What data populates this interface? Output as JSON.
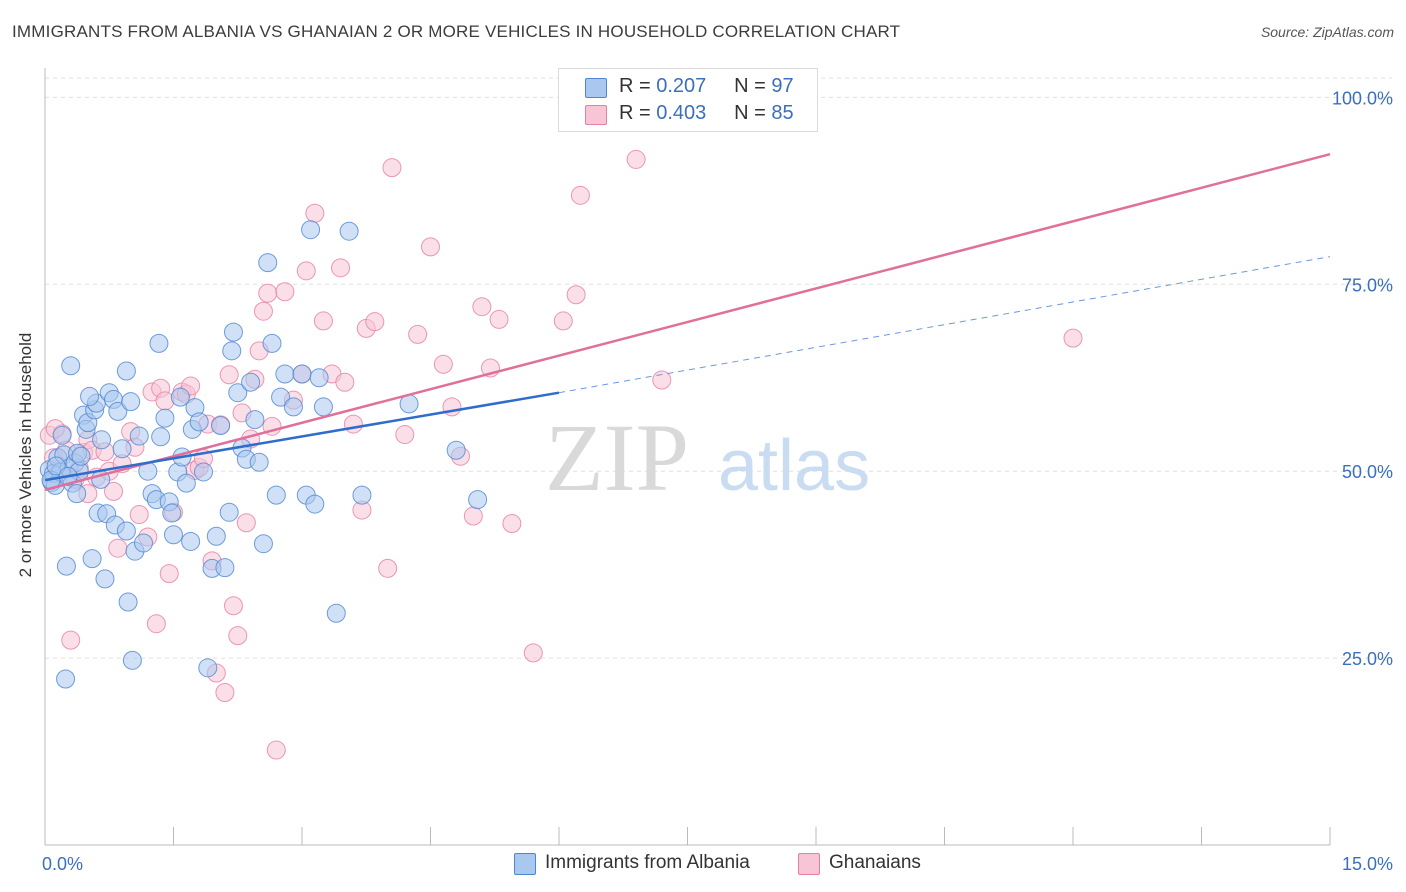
{
  "title": "IMMIGRANTS FROM ALBANIA VS GHANAIAN 2 OR MORE VEHICLES IN HOUSEHOLD CORRELATION CHART",
  "source": "Source: ZipAtlas.com",
  "watermark": {
    "zip": "ZIP",
    "atlas": "atlas"
  },
  "legend": {
    "rows": [
      {
        "r_label": "R =",
        "r_value": "0.207",
        "n_label": "N =",
        "n_value": "97"
      },
      {
        "r_label": "R =",
        "r_value": "0.403",
        "n_label": "N =",
        "n_value": "85"
      }
    ]
  },
  "colors": {
    "albania_fill": "#a9c8f0",
    "albania_stroke": "#4f86d0",
    "albania_line": "#2f6ccc",
    "ghana_fill": "#f7c5d5",
    "ghana_stroke": "#e57fa3",
    "ghana_line": "#e0709a",
    "axis_text": "#3a6fc0",
    "grid": "#e0e0e0"
  },
  "chart_data": {
    "type": "scatter",
    "title": "IMMIGRANTS FROM ALBANIA VS GHANAIAN 2 OR MORE VEHICLES IN HOUSEHOLD CORRELATION CHART",
    "xlabel": "",
    "ylabel": "2 or more Vehicles in Household",
    "xlim": [
      0,
      15
    ],
    "ylim": [
      0,
      105
    ],
    "x_ticks": [
      "0.0%",
      "15.0%"
    ],
    "y_ticks": [
      {
        "value": 25,
        "label": "25.0%"
      },
      {
        "value": 50,
        "label": "50.0%"
      },
      {
        "value": 75,
        "label": "75.0%"
      },
      {
        "value": 100,
        "label": "100.0%"
      }
    ],
    "grid": true,
    "legend_position": "top-center",
    "series": [
      {
        "name": "Immigrants from Albania",
        "trend": {
          "x0": 0,
          "y0": 48.8,
          "x1": 6.0,
          "y1": 60.5,
          "dash_x1": 15,
          "dash_y1": 78.7
        },
        "points": [
          [
            0.05,
            50.2
          ],
          [
            0.08,
            48.5
          ],
          [
            0.1,
            49.7
          ],
          [
            0.12,
            48.1
          ],
          [
            0.15,
            51.8
          ],
          [
            0.18,
            49.9
          ],
          [
            0.2,
            54.8
          ],
          [
            0.22,
            52.2
          ],
          [
            0.25,
            37.3
          ],
          [
            0.28,
            50.4
          ],
          [
            0.3,
            64.1
          ],
          [
            0.32,
            48.4
          ],
          [
            0.35,
            51.1
          ],
          [
            0.38,
            52.4
          ],
          [
            0.4,
            50.0
          ],
          [
            0.45,
            57.5
          ],
          [
            0.48,
            55.6
          ],
          [
            0.5,
            56.5
          ],
          [
            0.55,
            38.3
          ],
          [
            0.58,
            58.2
          ],
          [
            0.6,
            59.1
          ],
          [
            0.62,
            44.4
          ],
          [
            0.65,
            48.9
          ],
          [
            0.7,
            35.6
          ],
          [
            0.72,
            44.3
          ],
          [
            0.75,
            60.5
          ],
          [
            0.8,
            59.6
          ],
          [
            0.82,
            42.8
          ],
          [
            0.85,
            58.0
          ],
          [
            0.9,
            53.0
          ],
          [
            0.95,
            63.4
          ],
          [
            0.97,
            32.5
          ],
          [
            1.0,
            59.3
          ],
          [
            1.05,
            39.3
          ],
          [
            1.1,
            54.7
          ],
          [
            1.15,
            40.4
          ],
          [
            1.2,
            50.0
          ],
          [
            1.25,
            47.0
          ],
          [
            1.3,
            46.2
          ],
          [
            1.33,
            67.1
          ],
          [
            1.35,
            54.6
          ],
          [
            1.4,
            57.1
          ],
          [
            1.45,
            45.9
          ],
          [
            1.48,
            44.4
          ],
          [
            1.5,
            41.5
          ],
          [
            1.55,
            49.9
          ],
          [
            1.58,
            59.9
          ],
          [
            1.6,
            51.9
          ],
          [
            1.65,
            48.4
          ],
          [
            1.7,
            40.6
          ],
          [
            1.72,
            55.6
          ],
          [
            1.75,
            58.5
          ],
          [
            1.8,
            56.6
          ],
          [
            1.85,
            49.9
          ],
          [
            1.9,
            23.7
          ],
          [
            1.95,
            37.0
          ],
          [
            2.0,
            41.3
          ],
          [
            2.05,
            56.1
          ],
          [
            2.1,
            37.1
          ],
          [
            2.15,
            44.5
          ],
          [
            2.18,
            66.1
          ],
          [
            2.2,
            68.6
          ],
          [
            2.25,
            60.5
          ],
          [
            2.3,
            53.1
          ],
          [
            2.35,
            51.6
          ],
          [
            2.4,
            61.9
          ],
          [
            2.45,
            56.9
          ],
          [
            2.5,
            51.2
          ],
          [
            2.55,
            40.3
          ],
          [
            2.6,
            77.9
          ],
          [
            2.65,
            67.1
          ],
          [
            2.7,
            46.8
          ],
          [
            2.75,
            59.9
          ],
          [
            2.8,
            63.0
          ],
          [
            2.9,
            58.6
          ],
          [
            3.0,
            63.0
          ],
          [
            3.05,
            46.8
          ],
          [
            3.1,
            82.3
          ],
          [
            3.15,
            45.6
          ],
          [
            3.2,
            62.5
          ],
          [
            3.25,
            58.6
          ],
          [
            3.4,
            31.0
          ],
          [
            3.55,
            82.1
          ],
          [
            3.7,
            46.8
          ],
          [
            4.25,
            59.0
          ],
          [
            4.8,
            52.8
          ],
          [
            5.05,
            46.2
          ],
          [
            0.07,
            48.8
          ],
          [
            0.13,
            50.7
          ],
          [
            0.27,
            49.3
          ],
          [
            0.42,
            52.0
          ],
          [
            0.52,
            60.0
          ],
          [
            0.66,
            54.2
          ],
          [
            1.02,
            24.7
          ],
          [
            0.95,
            42.0
          ],
          [
            0.24,
            22.2
          ],
          [
            0.37,
            47.0
          ]
        ]
      },
      {
        "name": "Ghanaians",
        "trend": {
          "x0": 0,
          "y0": 47.5,
          "x1": 15,
          "y1": 92.4
        },
        "points": [
          [
            0.05,
            54.8
          ],
          [
            0.1,
            51.8
          ],
          [
            0.15,
            49.7
          ],
          [
            0.2,
            55.0
          ],
          [
            0.25,
            52.8
          ],
          [
            0.3,
            27.4
          ],
          [
            0.35,
            48.9
          ],
          [
            0.4,
            50.4
          ],
          [
            0.45,
            52.5
          ],
          [
            0.5,
            54.2
          ],
          [
            0.55,
            52.8
          ],
          [
            0.6,
            49.2
          ],
          [
            0.7,
            52.6
          ],
          [
            0.75,
            50.0
          ],
          [
            0.8,
            47.3
          ],
          [
            0.85,
            39.7
          ],
          [
            0.9,
            51.0
          ],
          [
            1.0,
            55.3
          ],
          [
            1.05,
            53.2
          ],
          [
            1.1,
            44.2
          ],
          [
            1.2,
            41.2
          ],
          [
            1.25,
            60.6
          ],
          [
            1.3,
            29.6
          ],
          [
            1.35,
            61.1
          ],
          [
            1.4,
            59.4
          ],
          [
            1.45,
            36.3
          ],
          [
            1.5,
            44.5
          ],
          [
            1.6,
            60.6
          ],
          [
            1.65,
            60.3
          ],
          [
            1.7,
            61.4
          ],
          [
            1.75,
            50.1
          ],
          [
            1.8,
            50.5
          ],
          [
            1.85,
            51.7
          ],
          [
            1.9,
            56.3
          ],
          [
            1.95,
            38.0
          ],
          [
            2.0,
            23.0
          ],
          [
            2.05,
            56.2
          ],
          [
            2.1,
            20.4
          ],
          [
            2.15,
            62.9
          ],
          [
            2.2,
            32.0
          ],
          [
            2.25,
            28.0
          ],
          [
            2.3,
            57.8
          ],
          [
            2.35,
            43.1
          ],
          [
            2.4,
            54.3
          ],
          [
            2.45,
            62.3
          ],
          [
            2.5,
            66.1
          ],
          [
            2.55,
            71.4
          ],
          [
            2.6,
            73.8
          ],
          [
            2.65,
            56.0
          ],
          [
            2.7,
            12.7
          ],
          [
            2.8,
            74.0
          ],
          [
            2.9,
            59.5
          ],
          [
            3.0,
            63.0
          ],
          [
            3.05,
            76.8
          ],
          [
            3.15,
            84.5
          ],
          [
            3.25,
            70.1
          ],
          [
            3.35,
            63.0
          ],
          [
            3.45,
            77.2
          ],
          [
            3.5,
            61.9
          ],
          [
            3.6,
            56.3
          ],
          [
            3.7,
            44.8
          ],
          [
            3.75,
            69.1
          ],
          [
            3.85,
            70.0
          ],
          [
            4.0,
            37.0
          ],
          [
            4.05,
            90.6
          ],
          [
            4.2,
            54.9
          ],
          [
            4.35,
            68.3
          ],
          [
            4.5,
            80.0
          ],
          [
            4.65,
            64.3
          ],
          [
            4.75,
            58.6
          ],
          [
            4.85,
            52.0
          ],
          [
            5.0,
            44.0
          ],
          [
            5.1,
            72.0
          ],
          [
            5.2,
            63.8
          ],
          [
            5.3,
            70.3
          ],
          [
            5.45,
            43.0
          ],
          [
            5.7,
            25.7
          ],
          [
            6.05,
            70.1
          ],
          [
            6.2,
            73.6
          ],
          [
            6.25,
            86.9
          ],
          [
            6.9,
            91.7
          ],
          [
            7.2,
            62.2
          ],
          [
            12.0,
            67.8
          ],
          [
            0.12,
            55.7
          ],
          [
            0.5,
            47.0
          ]
        ]
      }
    ]
  },
  "bottom_legend": [
    {
      "label": "Immigrants from Albania"
    },
    {
      "label": "Ghanaians"
    }
  ]
}
